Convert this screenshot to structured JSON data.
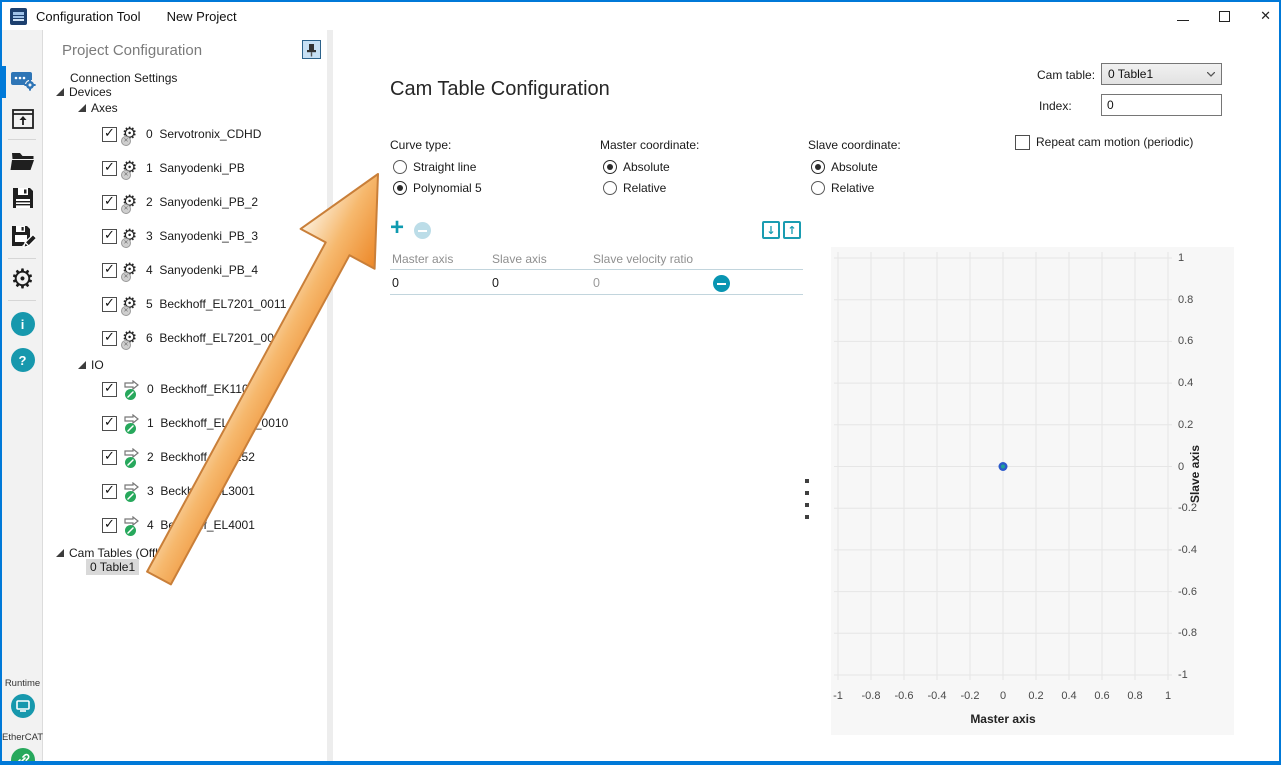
{
  "window": {
    "title": "Configuration Tool",
    "menu": [
      {
        "label": "New Project"
      }
    ]
  },
  "rail": {
    "runtime_label": "Runtime",
    "ethercat_label": "EtherCAT",
    "info_glyph": "i",
    "help_glyph": "?"
  },
  "tree": {
    "title": "Project Configuration",
    "connection_settings": "Connection Settings",
    "devices": "Devices",
    "axes": "Axes",
    "axes_items": [
      {
        "id": "0",
        "name": "Servotronix_CDHD"
      },
      {
        "id": "1",
        "name": "Sanyodenki_PB"
      },
      {
        "id": "2",
        "name": "Sanyodenki_PB_2"
      },
      {
        "id": "3",
        "name": "Sanyodenki_PB_3"
      },
      {
        "id": "4",
        "name": "Sanyodenki_PB_4"
      },
      {
        "id": "5",
        "name": "Beckhoff_EL7201_0011"
      },
      {
        "id": "6",
        "name": "Beckhoff_EL7201_0011_2"
      }
    ],
    "io": "IO",
    "io_items": [
      {
        "id": "0",
        "name": "Beckhoff_EK1101"
      },
      {
        "id": "1",
        "name": "Beckhoff_EL1252_0010"
      },
      {
        "id": "2",
        "name": "Beckhoff_EL2252"
      },
      {
        "id": "3",
        "name": "Beckhoff_EL3001"
      },
      {
        "id": "4",
        "name": "Beckhoff_EL4001"
      }
    ],
    "cam_tables": "Cam Tables (Offline)",
    "cam_table_item": "0 Table1"
  },
  "main": {
    "heading": "Cam Table Configuration",
    "cam_table_label": "Cam table:",
    "cam_table_value": "0 Table1",
    "index_label": "Index:",
    "index_value": "0",
    "repeat_label": "Repeat cam motion (periodic)",
    "curve_type": {
      "label": "Curve type:",
      "options": [
        "Straight line",
        "Polynomial 5"
      ],
      "selected": "Polynomial 5"
    },
    "master_coordinate": {
      "label": "Master coordinate:",
      "options": [
        "Absolute",
        "Relative"
      ],
      "selected": "Absolute"
    },
    "slave_coordinate": {
      "label": "Slave coordinate:",
      "options": [
        "Absolute",
        "Relative"
      ],
      "selected": "Absolute"
    },
    "table": {
      "headers": [
        "Master axis",
        "Slave axis",
        "Slave velocity ratio"
      ],
      "rows": [
        [
          "0",
          "0",
          "0"
        ]
      ]
    }
  },
  "annotation": {
    "type": "arrow",
    "direction": "up-right",
    "fill": "#ee8b2f",
    "outline": "#c97f39"
  },
  "chart_data": {
    "type": "scatter",
    "xlabel": "Master axis",
    "ylabel": "Slave axis",
    "xlim": [
      -1,
      1
    ],
    "ylim": [
      -1,
      1
    ],
    "xticks": [
      "-1",
      "-0.8",
      "-0.6",
      "-0.4",
      "-0.2",
      "0",
      "0.2",
      "0.4",
      "0.6",
      "0.8",
      "1"
    ],
    "yticks": [
      "1",
      "0.8",
      "0.6",
      "0.4",
      "0.2",
      "0",
      "-0.2",
      "-0.4",
      "-0.6",
      "-0.8",
      "-1"
    ],
    "grid": true,
    "grid_color": "#e6e6e6",
    "background": "#f7f7f7",
    "points": [
      {
        "x": 0,
        "y": 0
      }
    ],
    "point_color": "#2a59cb",
    "point_inner_color": "#1fa195"
  },
  "colors": {
    "accent_teal": "#0f9bb0",
    "window_border": "#0079d8",
    "arrow_orange": "#ee8b2f"
  }
}
